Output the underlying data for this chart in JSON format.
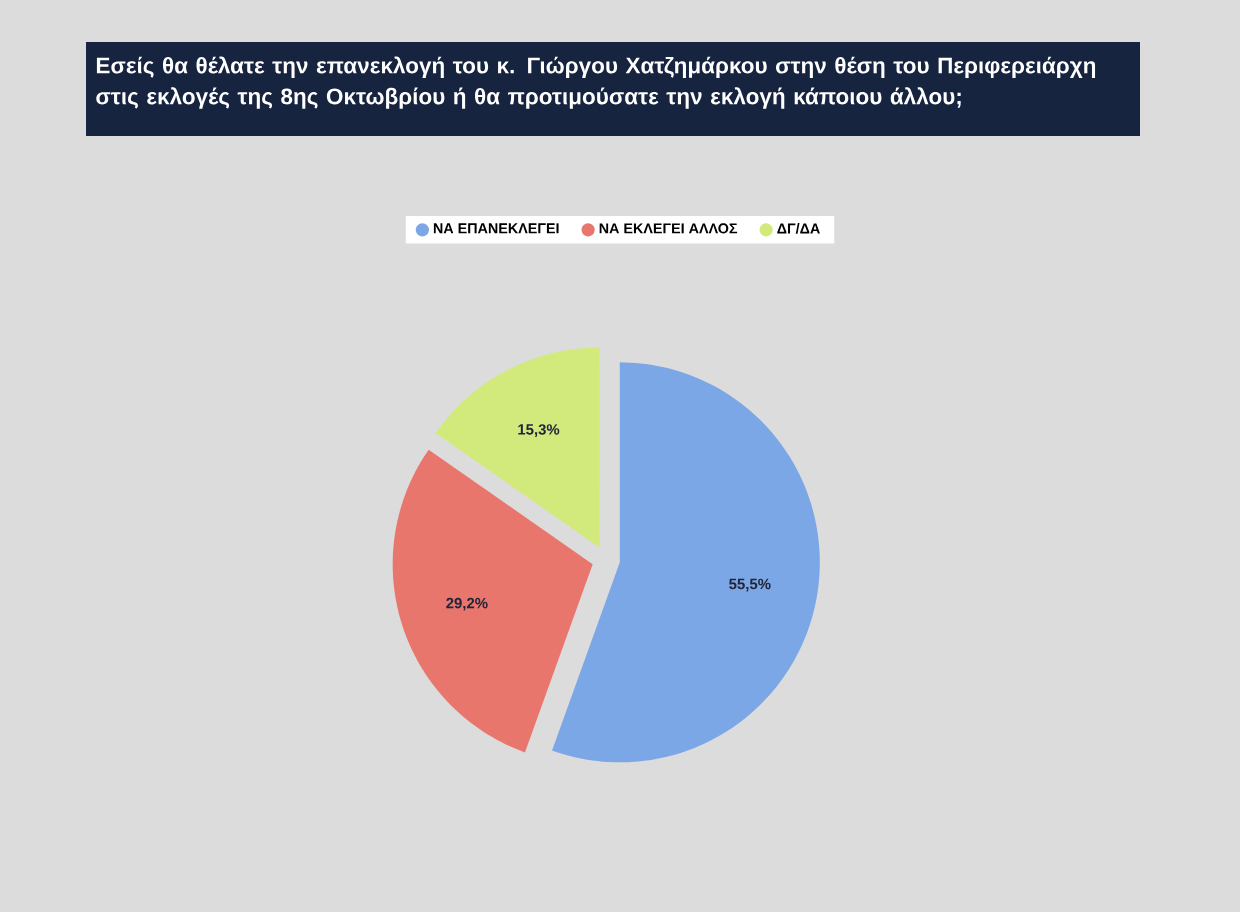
{
  "chart_data": {
    "type": "pie",
    "title": "Εσείς θα θέλατε την επανεκλογή του κ. Γιώργου Χατζημάρκου στην θέση του Περιφερειάρχη στις εκλογές της 8ης Οκτωβρίου ή θα προτιμούσατε την εκλογή κάποιου άλλου;",
    "categories": [
      "ΝΑ ΕΠΑΝΕΚΛΕΓΕΙ",
      "ΝΑ ΕΚΛΕΓΕΙ ΑΛΛΟΣ",
      "ΔΓ/ΔΑ"
    ],
    "values": [
      55.5,
      29.2,
      15.3
    ],
    "colors": [
      "#7ba7e6",
      "#e8766c",
      "#d2ea7c"
    ],
    "value_labels": [
      "55,5%",
      "29,2%",
      "15,3%"
    ],
    "legend": "top"
  }
}
